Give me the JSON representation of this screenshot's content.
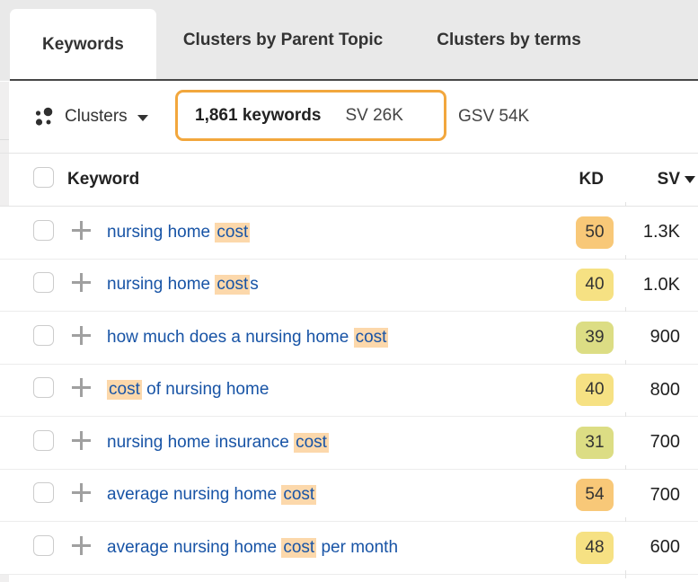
{
  "tabs": [
    {
      "label": "Keywords",
      "active": true
    },
    {
      "label": "Clusters by Parent Topic",
      "active": false
    },
    {
      "label": "Clusters by terms",
      "active": false
    }
  ],
  "toolbar": {
    "clusters_label": "Clusters",
    "keywords_count": "1,861 keywords",
    "sv_total": "SV 26K",
    "gsv_total": "GSV 54K"
  },
  "theme": {
    "accent_orange": "#f2a73d",
    "highlight_peach": "#fcd8ab",
    "link_blue": "#1854a6",
    "kd_orange": "#f8c878",
    "kd_yellow": "#f6e183",
    "kd_lime": "#dcdd84"
  },
  "table": {
    "columns": {
      "keyword": "Keyword",
      "kd": "KD",
      "sv": "SV"
    },
    "sort": {
      "column": "SV",
      "direction": "desc"
    },
    "rows": [
      {
        "keyword_parts": [
          {
            "text": "nursing home ",
            "highlight": false
          },
          {
            "text": "cost",
            "highlight": true
          }
        ],
        "kd": "50",
        "kd_color": "#f8c878",
        "sv": "1.3K"
      },
      {
        "keyword_parts": [
          {
            "text": "nursing home ",
            "highlight": false
          },
          {
            "text": "cost",
            "highlight": true
          },
          {
            "text": "s",
            "highlight": false
          }
        ],
        "kd": "40",
        "kd_color": "#f6e183",
        "sv": "1.0K"
      },
      {
        "keyword_parts": [
          {
            "text": "how much does a nursing home ",
            "highlight": false
          },
          {
            "text": "cost",
            "highlight": true
          }
        ],
        "kd": "39",
        "kd_color": "#dcdd84",
        "sv": "900"
      },
      {
        "keyword_parts": [
          {
            "text": "cost",
            "highlight": true
          },
          {
            "text": " of nursing home",
            "highlight": false
          }
        ],
        "kd": "40",
        "kd_color": "#f6e183",
        "sv": "800"
      },
      {
        "keyword_parts": [
          {
            "text": "nursing home insurance ",
            "highlight": false
          },
          {
            "text": "cost",
            "highlight": true
          }
        ],
        "kd": "31",
        "kd_color": "#dcdd84",
        "sv": "700"
      },
      {
        "keyword_parts": [
          {
            "text": "average nursing home ",
            "highlight": false
          },
          {
            "text": "cost",
            "highlight": true
          }
        ],
        "kd": "54",
        "kd_color": "#f8c878",
        "sv": "700"
      },
      {
        "keyword_parts": [
          {
            "text": "average nursing home ",
            "highlight": false
          },
          {
            "text": "cost",
            "highlight": true
          },
          {
            "text": " per month",
            "highlight": false
          }
        ],
        "kd": "48",
        "kd_color": "#f6e183",
        "sv": "600"
      }
    ]
  }
}
